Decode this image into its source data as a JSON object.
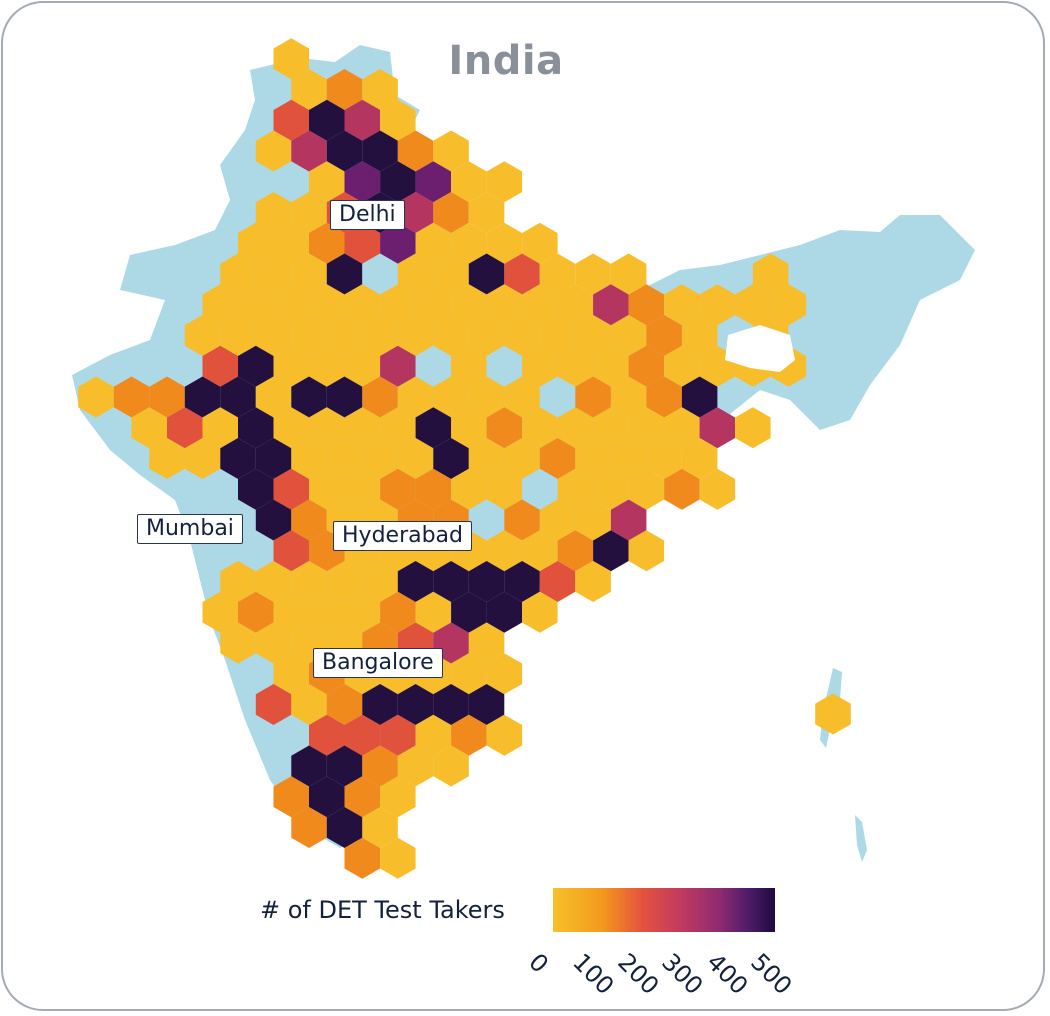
{
  "title": "India",
  "cities": [
    {
      "name": "Delhi"
    },
    {
      "name": "Mumbai"
    },
    {
      "name": "Hyderabad"
    },
    {
      "name": "Bangalore"
    }
  ],
  "legend": {
    "title": "# of DET Test Takers",
    "ticks": [
      "0",
      "100",
      "200",
      "300",
      "400",
      "500"
    ],
    "range": [
      0,
      500
    ]
  },
  "colors": {
    "land": "#add8e6",
    "low": "#f6c12a",
    "mid": "#e5533d",
    "high": "#1d0b3f",
    "frame": "#a3abb5"
  },
  "hex_rows": [
    [
      "-",
      "-",
      "-",
      "-",
      "-",
      "-",
      "-",
      "-",
      "-",
      "-",
      "-",
      "-",
      "-",
      "-",
      "-",
      "-",
      "-",
      "-",
      "-",
      "-"
    ],
    [
      "-",
      "-",
      "-",
      "-",
      "-",
      "Y",
      "-",
      "-",
      "-",
      "-",
      "-",
      "-",
      "-",
      "-",
      "-",
      "-",
      "-",
      "-",
      "-",
      "-"
    ],
    [
      "-",
      "-",
      "-",
      "-",
      "-",
      "-",
      "Y",
      "O",
      "Y",
      "-",
      "-",
      "-",
      "-",
      "-",
      "-",
      "-",
      "-",
      "-",
      "-",
      "-"
    ],
    [
      "-",
      "-",
      "-",
      "-",
      "-",
      "R",
      "D",
      "M",
      "Y",
      "-",
      "-",
      "-",
      "-",
      "-",
      "-",
      "-",
      "-",
      "-",
      "-",
      "-"
    ],
    [
      "-",
      "-",
      "-",
      "-",
      "-",
      "Y",
      "M",
      "D",
      "D",
      "O",
      "Y",
      "-",
      "-",
      "-",
      "-",
      "-",
      "-",
      "-",
      "-",
      "-"
    ],
    [
      "-",
      "-",
      "-",
      "-",
      "-",
      "-",
      "Y",
      "P",
      "D",
      "P",
      "Y",
      "Y",
      "-",
      "-",
      "-",
      "-",
      "-",
      "-",
      "-",
      "-"
    ],
    [
      "-",
      "-",
      "-",
      "-",
      "-",
      "Y",
      "Y",
      "R",
      "D",
      "M",
      "O",
      "Y",
      "-",
      "-",
      "-",
      "-",
      "-",
      "-",
      "-",
      "-"
    ],
    [
      "-",
      "-",
      "-",
      "-",
      "Y",
      "Y",
      "O",
      "R",
      "P",
      "Y",
      "Y",
      "Y",
      "Y",
      "-",
      "-",
      "-",
      "-",
      "-",
      "-",
      "-"
    ],
    [
      "-",
      "-",
      "-",
      "-",
      "Y",
      "Y",
      "Y",
      "D",
      "L",
      "Y",
      "Y",
      "D",
      "R",
      "Y",
      "Y",
      "Y",
      "-",
      "-",
      "-",
      "Y"
    ],
    [
      "-",
      "-",
      "-",
      "Y",
      "Y",
      "Y",
      "Y",
      "Y",
      "Y",
      "Y",
      "Y",
      "Y",
      "Y",
      "Y",
      "M",
      "O",
      "Y",
      "Y",
      "Y",
      "Y"
    ],
    [
      "-",
      "-",
      "-",
      "Y",
      "Y",
      "Y",
      "Y",
      "Y",
      "Y",
      "Y",
      "Y",
      "Y",
      "Y",
      "Y",
      "Y",
      "Y",
      "O",
      "Y",
      "-",
      "Y"
    ],
    [
      "-",
      "-",
      "-",
      "R",
      "D",
      "Y",
      "Y",
      "Y",
      "M",
      "L",
      "Y",
      "L",
      "Y",
      "Y",
      "Y",
      "O",
      "Y",
      "Y",
      "Y",
      "Y"
    ],
    [
      "Y",
      "O",
      "O",
      "D",
      "D",
      "Y",
      "D",
      "D",
      "O",
      "Y",
      "Y",
      "Y",
      "Y",
      "L",
      "O",
      "Y",
      "O",
      "D",
      "-",
      "-"
    ],
    [
      "-",
      "Y",
      "R",
      "Y",
      "D",
      "Y",
      "Y",
      "Y",
      "Y",
      "D",
      "Y",
      "O",
      "Y",
      "Y",
      "Y",
      "Y",
      "Y",
      "M",
      "Y",
      "-"
    ],
    [
      "-",
      "-",
      "Y",
      "Y",
      "D",
      "D",
      "Y",
      "Y",
      "Y",
      "Y",
      "D",
      "Y",
      "Y",
      "O",
      "Y",
      "Y",
      "Y",
      "Y",
      "-",
      "-"
    ],
    [
      "-",
      "-",
      "-",
      "-",
      "D",
      "R",
      "Y",
      "Y",
      "O",
      "O",
      "Y",
      "Y",
      "L",
      "Y",
      "Y",
      "Y",
      "O",
      "Y",
      "-",
      "-"
    ],
    [
      "-",
      "-",
      "-",
      "-",
      "-",
      "D",
      "O",
      "Y",
      "Y",
      "O",
      "O",
      "L",
      "O",
      "Y",
      "Y",
      "M",
      "-",
      "-",
      "-",
      "-"
    ],
    [
      "-",
      "-",
      "-",
      "-",
      "-",
      "R",
      "O",
      "Y",
      "Y",
      "Y",
      "Y",
      "Y",
      "Y",
      "O",
      "D",
      "Y",
      "-",
      "-",
      "-",
      "-"
    ],
    [
      "-",
      "-",
      "-",
      "-",
      "Y",
      "Y",
      "Y",
      "Y",
      "Y",
      "D",
      "D",
      "D",
      "D",
      "R",
      "Y",
      "-",
      "-",
      "-",
      "-",
      "-"
    ],
    [
      "-",
      "-",
      "-",
      "Y",
      "O",
      "Y",
      "Y",
      "Y",
      "O",
      "Y",
      "D",
      "D",
      "Y",
      "-",
      "-",
      "-",
      "-",
      "-",
      "-",
      "-"
    ],
    [
      "-",
      "-",
      "-",
      "-",
      "Y",
      "Y",
      "Y",
      "Y",
      "O",
      "R",
      "M",
      "Y",
      "-",
      "-",
      "-",
      "-",
      "-",
      "-",
      "-",
      "-"
    ],
    [
      "-",
      "-",
      "-",
      "-",
      "-",
      "Y",
      "O",
      "Y",
      "Y",
      "Y",
      "Y",
      "Y",
      "-",
      "-",
      "-",
      "-",
      "-",
      "-",
      "-",
      "-"
    ],
    [
      "-",
      "-",
      "-",
      "-",
      "-",
      "R",
      "Y",
      "O",
      "D",
      "D",
      "D",
      "D",
      "-",
      "-",
      "-",
      "-",
      "-",
      "-",
      "-",
      "-"
    ],
    [
      "-",
      "-",
      "-",
      "-",
      "-",
      "-",
      "R",
      "R",
      "R",
      "Y",
      "O",
      "Y",
      "-",
      "-",
      "-",
      "-",
      "-",
      "-",
      "-",
      "-"
    ],
    [
      "-",
      "-",
      "-",
      "-",
      "-",
      "-",
      "D",
      "D",
      "O",
      "Y",
      "Y",
      "-",
      "-",
      "-",
      "-",
      "-",
      "-",
      "-",
      "-",
      "-"
    ],
    [
      "-",
      "-",
      "-",
      "-",
      "-",
      "O",
      "D",
      "O",
      "Y",
      "-",
      "-",
      "-",
      "-",
      "-",
      "-",
      "-",
      "-",
      "-",
      "-",
      "-"
    ],
    [
      "-",
      "-",
      "-",
      "-",
      "-",
      "-",
      "O",
      "D",
      "Y",
      "-",
      "-",
      "-",
      "-",
      "-",
      "-",
      "-",
      "-",
      "-",
      "-",
      "-"
    ],
    [
      "-",
      "-",
      "-",
      "-",
      "-",
      "-",
      "-",
      "O",
      "Y",
      "-",
      "-",
      "-",
      "-",
      "-",
      "-",
      "-",
      "-",
      "-",
      "-",
      "-"
    ]
  ],
  "hex_scale": {
    "Y": "#f7bd2a",
    "O": "#f08a1d",
    "R": "#e0523c",
    "M": "#b33560",
    "P": "#6c1f6e",
    "D": "#24103f",
    "L": "#add8e6"
  }
}
